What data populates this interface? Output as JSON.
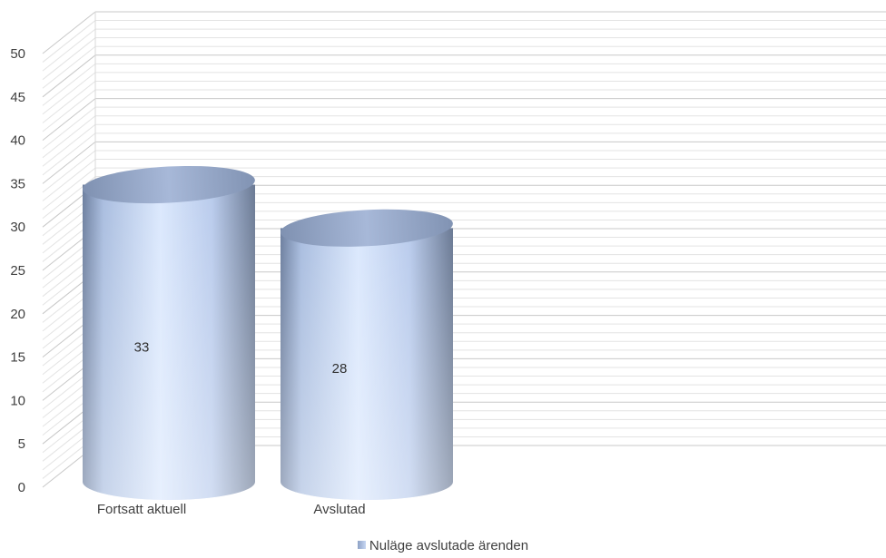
{
  "chart_data": {
    "type": "bar",
    "style": "3d-cylinder",
    "categories": [
      "Fortsatt aktuell",
      "Avslutad"
    ],
    "series": [
      {
        "name": "Nuläge avslutade ärenden",
        "values": [
          33,
          28
        ]
      }
    ],
    "data_labels": [
      "33",
      "28"
    ],
    "y_ticks": [
      "0",
      "5",
      "10",
      "15",
      "20",
      "25",
      "30",
      "35",
      "40",
      "45",
      "50"
    ],
    "ylim": [
      0,
      50
    ],
    "grid": true,
    "legend_position": "bottom",
    "colors": {
      "bar_light": "#dbe8fd",
      "bar_mid": "#b3c8ef",
      "bar_dark": "#6d7f9f",
      "grid": "#d9d9d9"
    }
  }
}
